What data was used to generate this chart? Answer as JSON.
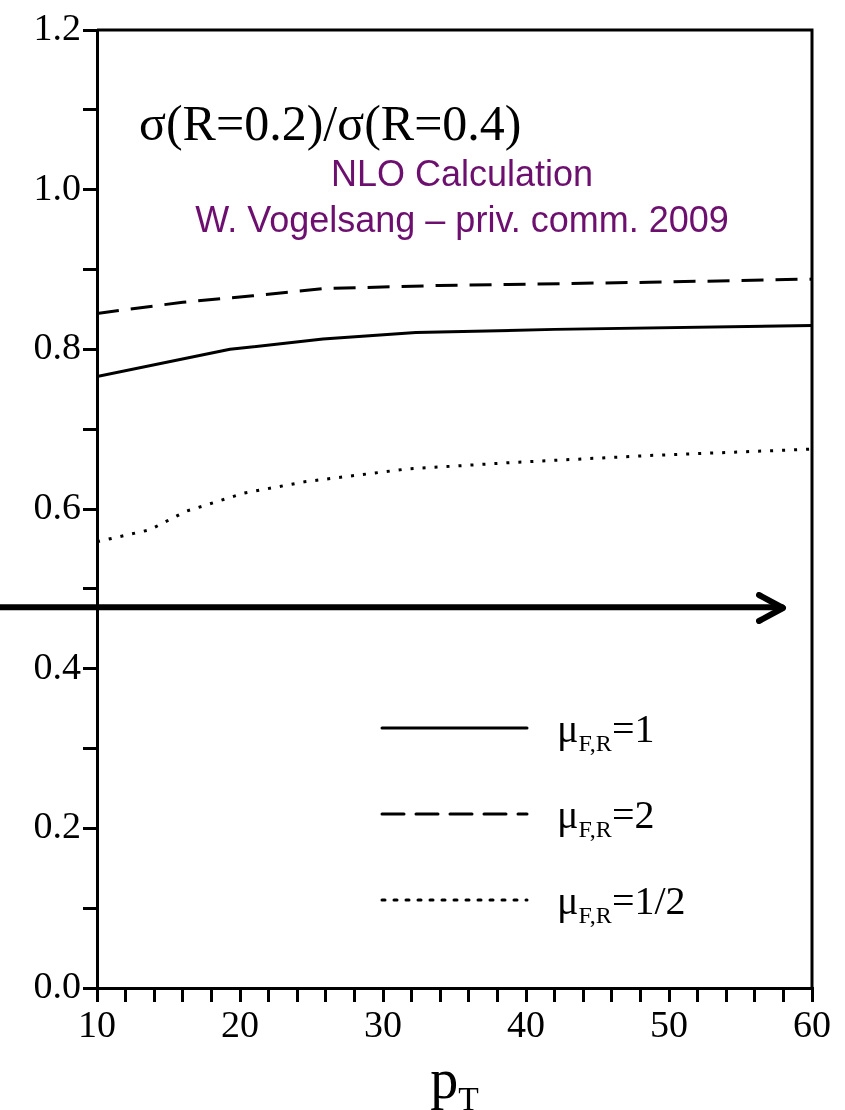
{
  "chart_data": {
    "type": "line",
    "title": "σ(R=0.2)/σ(R=0.4)",
    "xlabel": "p$_{T}$",
    "annotations": [
      "NLO Calculation",
      "W. Vogelsang – priv. comm. 2009"
    ],
    "xlim": [
      10,
      60
    ],
    "xticks": [
      10,
      {
        "value": 12,
        "label": null
      },
      {
        "value": 14,
        "label": null
      },
      {
        "value": 16,
        "label": null
      },
      {
        "value": 18,
        "label": null
      },
      20,
      {
        "value": 22,
        "label": null
      },
      {
        "value": 24,
        "label": null
      },
      {
        "value": 26,
        "label": null
      },
      {
        "value": 28,
        "label": null
      },
      30,
      {
        "value": 32,
        "label": null
      },
      {
        "value": 34,
        "label": null
      },
      {
        "value": 36,
        "label": null
      },
      {
        "value": 38,
        "label": null
      },
      40,
      {
        "value": 42,
        "label": null
      },
      {
        "value": 44,
        "label": null
      },
      {
        "value": 46,
        "label": null
      },
      {
        "value": 48,
        "label": null
      },
      50,
      {
        "value": 52,
        "label": null
      },
      {
        "value": 54,
        "label": null
      },
      {
        "value": 56,
        "label": null
      },
      {
        "value": 58,
        "label": null
      },
      60
    ],
    "ref_lines": [
      {
        "axis": "y",
        "value": 0.477,
        "color": "#000000"
      }
    ],
    "ylim": [
      0,
      1.2
    ],
    "yticks": [
      {
        "value": 0,
        "label": "0.0"
      },
      {
        "value": 0.1,
        "label": null
      },
      0.2,
      {
        "value": 0.3,
        "label": null
      },
      0.4,
      {
        "value": 0.5,
        "label": null
      },
      0.6,
      {
        "value": 0.7,
        "label": null
      },
      0.8,
      {
        "value": 0.9,
        "label": null
      },
      {
        "value": 1,
        "label": "1.0"
      },
      {
        "value": 1.1,
        "label": null
      },
      1.2
    ],
    "legend": "bottom right",
    "grid": false,
    "marker": "none",
    "series": [
      {
        "name": "μ$_{F,R}$=1",
        "color": "#000000",
        "line_style": "solid",
        "x": [
          10,
          19.3,
          25.8,
          32.3,
          42,
          60
        ],
        "values": [
          0.766,
          0.8,
          0.813,
          0.821,
          0.825,
          0.83
        ]
      },
      {
        "name": "μ$_{F,R}$=2",
        "color": "#000000",
        "line_style": "dashed",
        "x": [
          10,
          16,
          20.9,
          25.8,
          33.9,
          48.6,
          60
        ],
        "values": [
          0.845,
          0.859,
          0.867,
          0.876,
          0.88,
          0.884,
          0.888
        ]
      },
      {
        "name": "μ$_{F,R}$=1/2",
        "color": "#000000",
        "line_style": "dotted",
        "x": [
          10,
          13.7,
          16.2,
          20.3,
          24.5,
          31.6,
          38.8,
          48.6,
          60
        ],
        "values": [
          0.559,
          0.574,
          0.597,
          0.62,
          0.634,
          0.65,
          0.658,
          0.667,
          0.675
        ]
      }
    ]
  }
}
